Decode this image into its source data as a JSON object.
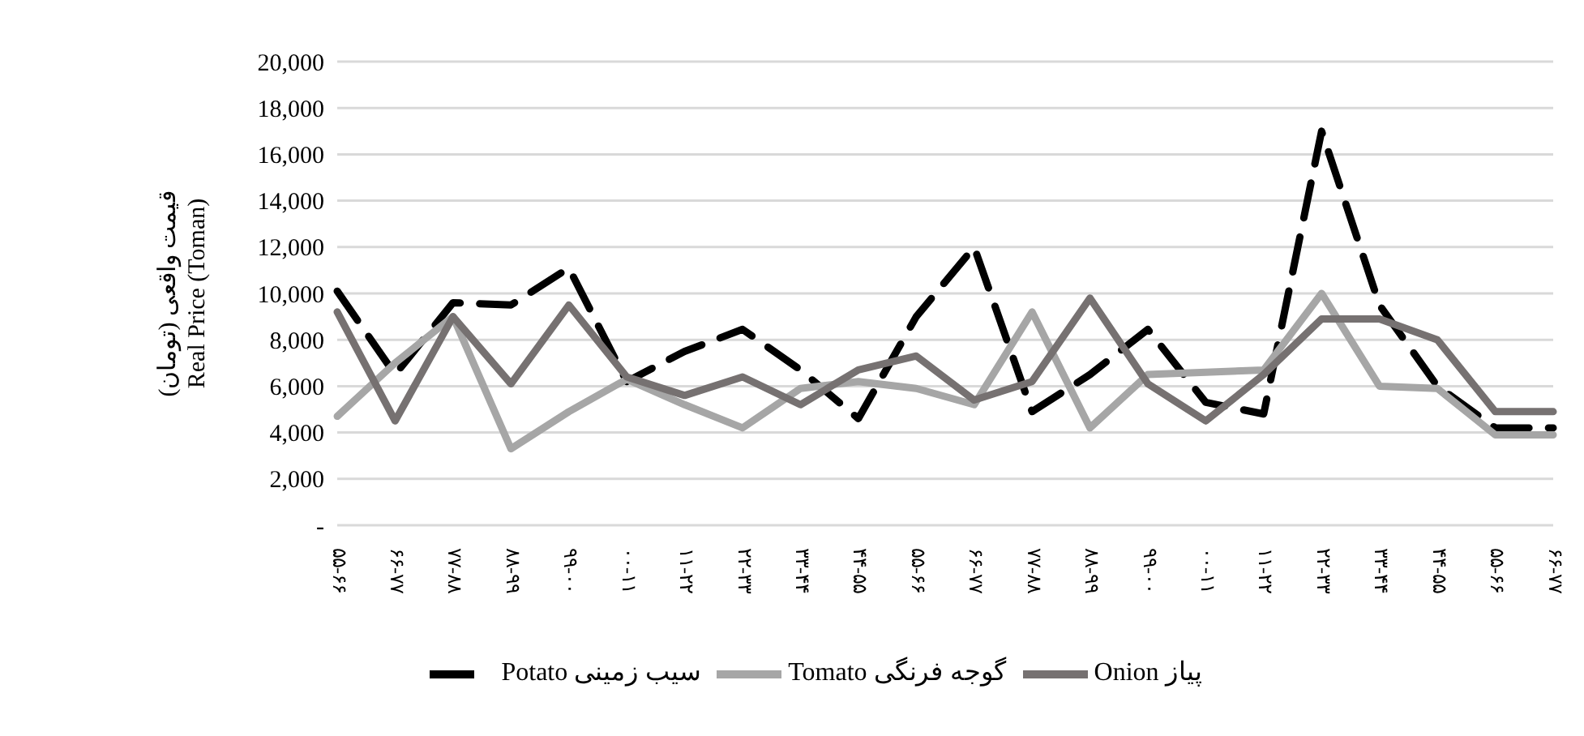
{
  "chart_data": {
    "type": "line",
    "ylabel": "قیمت واقعی (تومان)\nReal Price (Toman)",
    "categories": [
      "۵۵-۶۶",
      "۶۶-۷۷",
      "۷۷-۸۸",
      "۸۸-۹۹",
      "۹۹-۰۰",
      "۰۰-۱۱",
      "۱۱-۲۲",
      "۲۲-۳۳",
      "۳۳-۴۴",
      "۴۴-۵۵",
      "۵۵-۶۶",
      "۶۶-۷۷",
      "۷۷-۸۸",
      "۸۸-۹۹",
      "۹۹-۰۰",
      "۰۰-۱۱",
      "۱۱-۲۲",
      "۲۲-۳۳",
      "۳۳-۴۴",
      "۴۴-۵۵",
      "۵۵-۶۶",
      "۶۶-۷۷"
    ],
    "series": [
      {
        "name": "Potato سیب زمینی",
        "color": "#000000",
        "line_style": "dashed",
        "values": [
          10100,
          6500,
          9600,
          9500,
          11100,
          6200,
          7500,
          8450,
          6700,
          4600,
          9000,
          12000,
          4900,
          6500,
          8450,
          5300,
          4800,
          17000,
          9500,
          6000,
          4200,
          4200
        ]
      },
      {
        "name": "Tomato گوجه فرنگی",
        "color": "#a6a6a6",
        "line_style": "solid",
        "values": [
          4700,
          7000,
          9000,
          3300,
          4900,
          6300,
          5200,
          4200,
          5900,
          6200,
          5900,
          5200,
          9200,
          4200,
          6500,
          6600,
          6700,
          10000,
          6000,
          5900,
          3900,
          3900
        ]
      },
      {
        "name": "Onion پیاز",
        "color": "#767171",
        "line_style": "solid",
        "values": [
          9200,
          4500,
          9000,
          6100,
          9500,
          6400,
          5600,
          6400,
          5200,
          6700,
          7300,
          5400,
          6200,
          9800,
          6100,
          4500,
          6500,
          8900,
          8900,
          8000,
          4900,
          4900
        ]
      }
    ],
    "ylim": [
      0,
      20000
    ],
    "yticks": [
      {
        "value": 0,
        "label": "-"
      },
      {
        "value": 2000,
        "label": "2,000"
      },
      {
        "value": 4000,
        "label": "4,000"
      },
      {
        "value": 6000,
        "label": "6,000"
      },
      {
        "value": 8000,
        "label": "8,000"
      },
      {
        "value": 10000,
        "label": "10,000"
      },
      {
        "value": 12000,
        "label": "12,000"
      },
      {
        "value": 14000,
        "label": "14,000"
      },
      {
        "value": 16000,
        "label": "16,000"
      },
      {
        "value": 18000,
        "label": "18,000"
      },
      {
        "value": 20000,
        "label": "20,000"
      }
    ],
    "grid": "y",
    "legend": "bottom",
    "marker": "none"
  }
}
